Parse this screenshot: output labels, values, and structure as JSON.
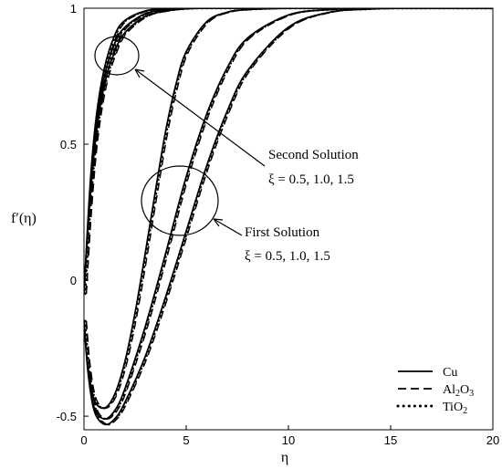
{
  "chart_data": {
    "type": "line",
    "xlabel": "η",
    "ylabel": "f′(η)",
    "xlim": [
      0,
      20
    ],
    "ylim": [
      -0.55,
      1.0
    ],
    "x_ticks": [
      0,
      5,
      10,
      15,
      20
    ],
    "y_ticks": [
      -0.5,
      0,
      0.5,
      1
    ],
    "x_tick_labels": [
      "0",
      "5",
      "10",
      "15",
      "20"
    ],
    "y_tick_labels": [
      "-0.5",
      "0",
      "0.5",
      "1"
    ],
    "grid": false,
    "legend_position": "bottom-right",
    "legend": [
      {
        "label": "Cu",
        "style": "solid"
      },
      {
        "label": "Al2O3",
        "label_base": "Al",
        "label_sub1": "2",
        "label_mid": "O",
        "label_sub2": "3",
        "style": "dashed"
      },
      {
        "label": "TiO2",
        "label_base": "TiO",
        "label_sub1": "2",
        "style": "dotted"
      }
    ],
    "annotations": [
      {
        "title": "Second Solution",
        "subtitle": "ξ = 0.5, 1.0, 1.5"
      },
      {
        "title": "First Solution",
        "subtitle": "ξ = 0.5, 1.0, 1.5"
      }
    ],
    "series": [
      {
        "solution": "second",
        "xi": 0.5,
        "nanofluid": "Cu",
        "style": "solid",
        "x": [
          0,
          0.3,
          0.6,
          1.0,
          1.5,
          2.0,
          3.0,
          4.0,
          5.0,
          6.0,
          8.0,
          20.0
        ],
        "values": [
          -0.05,
          0.35,
          0.6,
          0.78,
          0.9,
          0.955,
          0.99,
          0.998,
          1.0,
          1.0,
          1.0,
          1.0
        ]
      },
      {
        "solution": "second",
        "xi": 1.0,
        "nanofluid": "Cu",
        "style": "solid",
        "x": [
          0,
          0.3,
          0.6,
          1.0,
          1.5,
          2.0,
          3.0,
          4.0,
          5.0,
          6.0,
          8.0,
          20.0
        ],
        "values": [
          -0.05,
          0.33,
          0.57,
          0.75,
          0.87,
          0.93,
          0.98,
          0.995,
          1.0,
          1.0,
          1.0,
          1.0
        ]
      },
      {
        "solution": "second",
        "xi": 1.5,
        "nanofluid": "Cu",
        "style": "solid",
        "x": [
          0,
          0.3,
          0.6,
          1.0,
          1.5,
          2.0,
          3.0,
          4.0,
          5.0,
          6.0,
          8.0,
          20.0
        ],
        "values": [
          -0.05,
          0.3,
          0.54,
          0.72,
          0.84,
          0.91,
          0.97,
          0.99,
          0.998,
          1.0,
          1.0,
          1.0
        ]
      },
      {
        "solution": "first",
        "xi": 0.5,
        "nanofluid": "Cu",
        "style": "solid",
        "x": [
          0,
          0.2,
          0.5,
          1.0,
          1.5,
          2.0,
          2.5,
          3.0,
          3.5,
          4.0,
          4.5,
          5.0,
          6.0,
          7.0,
          8.0,
          10.0,
          12.0,
          20.0
        ],
        "values": [
          -0.15,
          -0.32,
          -0.44,
          -0.47,
          -0.42,
          -0.3,
          -0.12,
          0.1,
          0.33,
          0.55,
          0.72,
          0.84,
          0.95,
          0.985,
          0.995,
          1.0,
          1.0,
          1.0
        ]
      },
      {
        "solution": "first",
        "xi": 1.0,
        "nanofluid": "Cu",
        "style": "solid",
        "x": [
          0,
          0.2,
          0.5,
          1.0,
          1.5,
          2.0,
          3.0,
          4.0,
          5.0,
          6.0,
          7.0,
          8.0,
          10.0,
          12.0,
          14.0,
          20.0
        ],
        "values": [
          -0.15,
          -0.33,
          -0.47,
          -0.51,
          -0.48,
          -0.4,
          -0.17,
          0.1,
          0.38,
          0.61,
          0.78,
          0.89,
          0.975,
          0.995,
          1.0,
          1.0
        ]
      },
      {
        "solution": "first",
        "xi": 1.5,
        "nanofluid": "Cu",
        "style": "solid",
        "x": [
          0,
          0.2,
          0.5,
          1.0,
          1.5,
          2.0,
          3.0,
          4.0,
          5.0,
          6.0,
          7.0,
          8.0,
          10.0,
          12.0,
          14.0,
          16.0,
          20.0
        ],
        "values": [
          -0.15,
          -0.34,
          -0.48,
          -0.53,
          -0.51,
          -0.45,
          -0.28,
          -0.06,
          0.18,
          0.42,
          0.62,
          0.77,
          0.93,
          0.985,
          0.997,
          1.0,
          1.0
        ]
      }
    ]
  }
}
